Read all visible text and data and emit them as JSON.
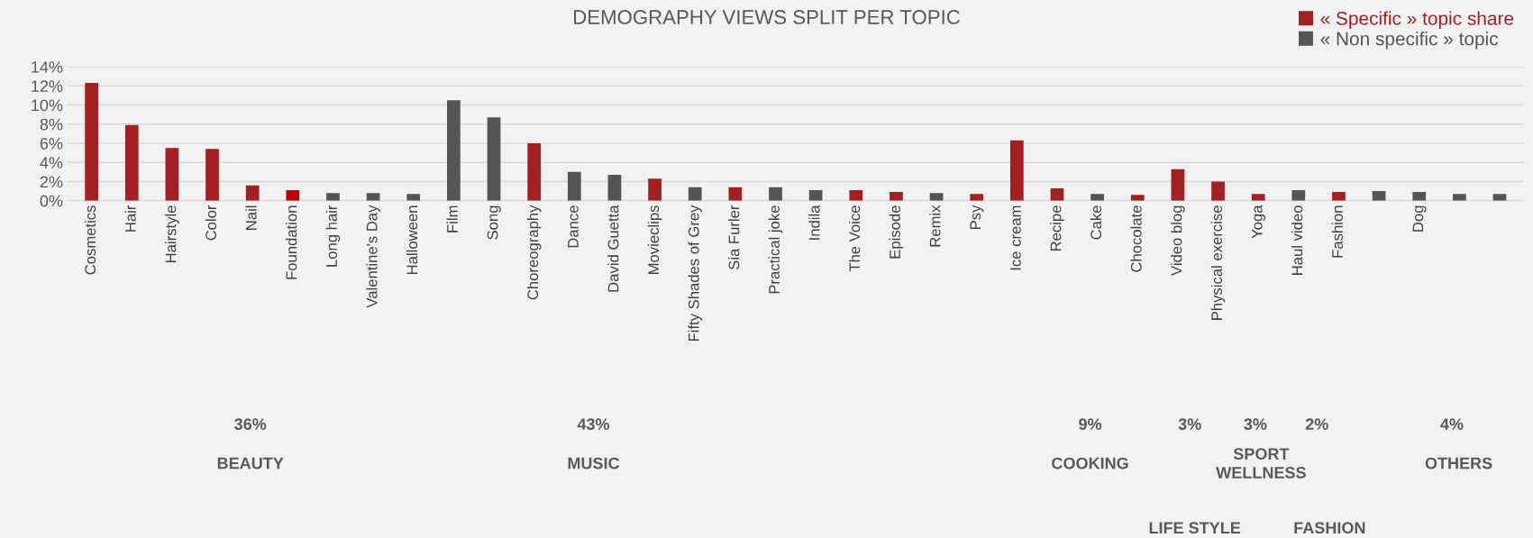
{
  "chart_data": {
    "type": "bar",
    "title": "DEMOGRAPHY VIEWS SPLIT PER TOPIC",
    "categories": [
      "Cosmetics",
      "Hair",
      "Hairstyle",
      "Color",
      "Nail",
      "Foundation",
      "Long hair",
      "Valentine's Day",
      "Halloween",
      "Film",
      "Song",
      "Choreography",
      "Dance",
      "David Guetta",
      "Movieclips",
      "Fifty Shades of Grey",
      "Sia Furler",
      "Practical joke",
      "Indila",
      "The Voice",
      "Episode",
      "Remix",
      "Psy",
      "Ice cream",
      "Recipe",
      "Cake",
      "Chocolate",
      "Video blog",
      "Physical exercise",
      "Yoga",
      "Haul video",
      "Fashion",
      null,
      "Dog",
      null,
      null
    ],
    "series": [
      {
        "name": "« Specific » topic share",
        "color": "#a31f22",
        "colors": [
          "#a31f22",
          "#a31f22",
          "#a31f22",
          "#a31f22",
          "#a31f22",
          "#c00000",
          "#a31f22",
          "#a31f22",
          "#a31f22",
          "#a31f22",
          "#a31f22",
          "#a31f22",
          "#a31f22",
          "#a31f22",
          "#a31f22",
          "#a31f22",
          "#a31f22",
          "#a31f22",
          "#a31f22",
          "#a31f22",
          "#a31f22",
          "#a31f22",
          "#a31f22",
          "#a31f22",
          "#a31f22",
          "#a31f22",
          "#a31f22",
          "#a31f22",
          "#a31f22",
          "#a31f22",
          "#a31f22",
          "#a31f22",
          "#a31f22",
          "#a31f22",
          "#a31f22",
          "#a31f22"
        ],
        "values": [
          12.3,
          7.9,
          5.5,
          5.4,
          1.6,
          1.1,
          null,
          null,
          null,
          null,
          null,
          6.0,
          null,
          null,
          2.3,
          null,
          1.4,
          null,
          null,
          1.1,
          0.9,
          null,
          0.7,
          6.3,
          1.3,
          null,
          0.6,
          3.3,
          2.0,
          0.7,
          null,
          0.9,
          null,
          null,
          null,
          null
        ]
      },
      {
        "name": "« Non specific » topic",
        "color": "#555555",
        "values": [
          null,
          null,
          null,
          null,
          null,
          null,
          0.8,
          0.8,
          0.7,
          10.5,
          8.7,
          null,
          3.0,
          2.7,
          null,
          1.4,
          null,
          1.4,
          1.1,
          null,
          null,
          0.8,
          null,
          null,
          null,
          0.7,
          null,
          null,
          null,
          null,
          1.1,
          null,
          1.0,
          0.9,
          0.7,
          0.7
        ]
      }
    ],
    "ylim": [
      0,
      14
    ],
    "yticks": [
      {
        "value": 0,
        "label": "0%"
      },
      {
        "value": 2,
        "label": "2%"
      },
      {
        "value": 4,
        "label": "4%"
      },
      {
        "value": 6,
        "label": "6%"
      },
      {
        "value": 8,
        "label": "8%"
      },
      {
        "value": 10,
        "label": "10%"
      },
      {
        "value": 12,
        "label": "12%"
      },
      {
        "value": 14,
        "label": "14%"
      }
    ],
    "grid": "y",
    "legend": "top right",
    "annotations": [
      "36%",
      "43%",
      "9%",
      "3%",
      "3%",
      "2%",
      "4%",
      "BEAUTY",
      "MUSIC",
      "COOKING",
      "SPORT\nWELLNESS",
      "OTHERS",
      "LIFE STYLE",
      "FASHION"
    ]
  }
}
